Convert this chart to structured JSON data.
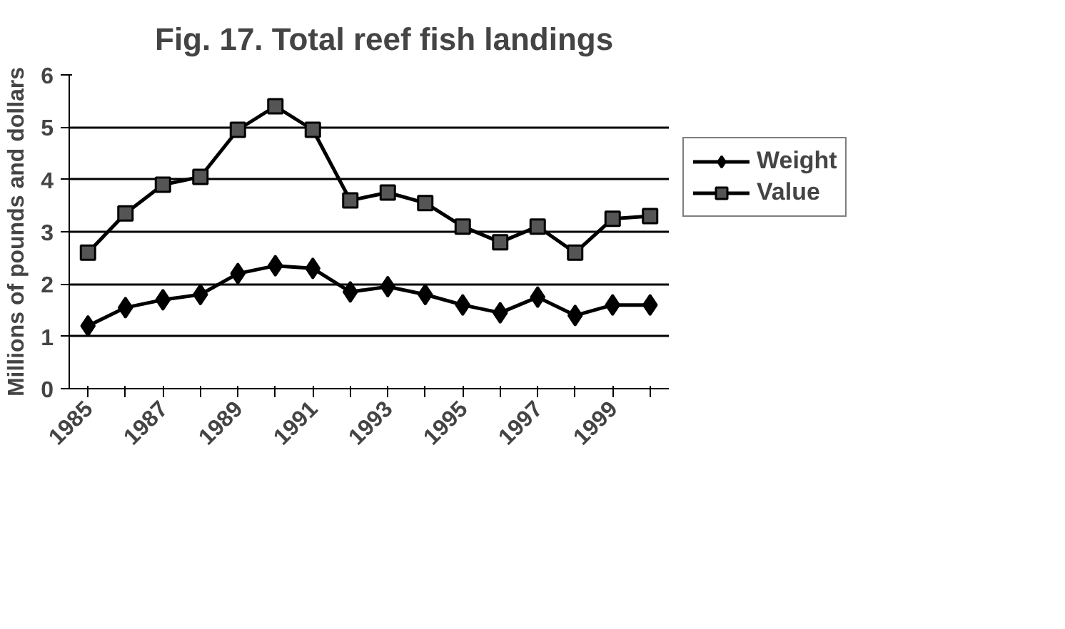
{
  "chart_data": {
    "type": "line",
    "title": "Fig. 17.  Total reef fish landings",
    "ylabel": "Millions of pounds and dollars",
    "categories": [
      "1985",
      null,
      "1987",
      null,
      "1989",
      null,
      "1991",
      null,
      "1993",
      null,
      "1995",
      null,
      "1997",
      null,
      "1999",
      null
    ],
    "series": [
      {
        "name": "Weight",
        "color": "#000000",
        "marker": "diamond",
        "values": [
          1.2,
          1.55,
          1.7,
          1.8,
          2.2,
          2.35,
          2.3,
          1.85,
          1.95,
          1.8,
          1.6,
          1.45,
          1.75,
          1.4,
          1.6,
          1.6
        ]
      },
      {
        "name": "Value",
        "color": "#000000",
        "marker": "square",
        "values": [
          2.6,
          3.35,
          3.9,
          4.05,
          4.95,
          5.4,
          4.95,
          3.6,
          3.75,
          3.55,
          3.1,
          2.8,
          3.1,
          2.6,
          3.25,
          3.3
        ]
      }
    ],
    "ylim": [
      0,
      6
    ],
    "yticks": [
      0,
      1,
      2,
      3,
      4,
      5,
      6
    ],
    "grid": "y",
    "legend": "right",
    "line_style": "solid"
  }
}
